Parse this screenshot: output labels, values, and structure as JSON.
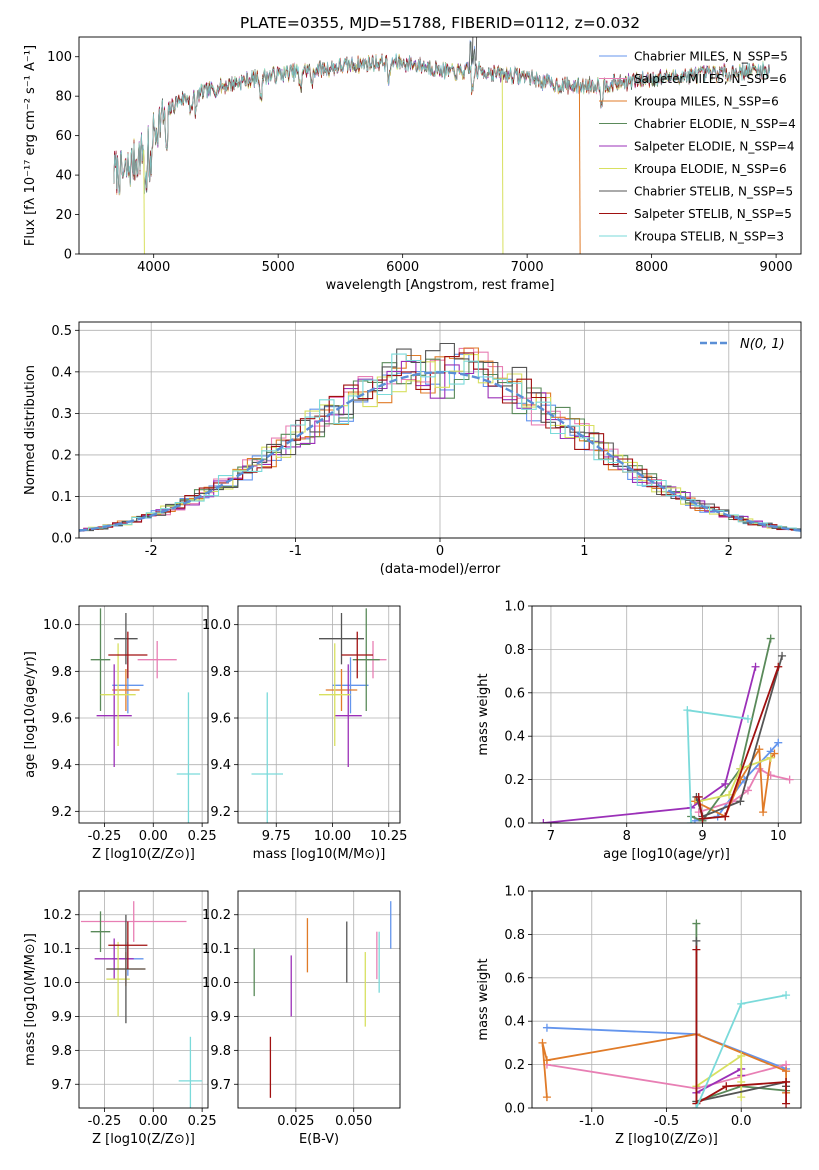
{
  "chart_data": [
    {
      "id": "spectrum",
      "type": "line",
      "title": "PLATE=0355, MJD=51788, FIBERID=0112, z=0.032",
      "xlabel": "wavelength [Angstrom, rest frame]",
      "ylabel": "Flux [fλ 10⁻¹⁷ erg cm⁻² s⁻¹ A⁻¹]",
      "xlim": [
        3400,
        9200
      ],
      "ylim": [
        0,
        110
      ],
      "xticks": [
        4000,
        5000,
        6000,
        7000,
        8000,
        9000
      ],
      "yticks": [
        0,
        20,
        40,
        60,
        80,
        100
      ],
      "legend_position": "top-right",
      "legend": [
        "Chabrier MILES, N_SSP=5",
        "Salpeter MILES, N_SSP=6",
        "Kroupa MILES, N_SSP=6",
        "Chabrier ELODIE, N_SSP=4",
        "Salpeter ELODIE, N_SSP=4",
        "Kroupa ELODIE, N_SSP=6",
        "Chabrier STELIB, N_SSP=5",
        "Salpeter STELIB, N_SSP=5",
        "Kroupa STELIB, N_SSP=3"
      ],
      "continuum": {
        "x": [
          3680,
          3760,
          3860,
          3950,
          4050,
          4200,
          4400,
          4600,
          4800,
          5000,
          5200,
          5400,
          5600,
          5800,
          6000,
          6200,
          6400,
          6600,
          6800,
          7000,
          7200,
          7400,
          7600,
          7800,
          8000,
          8200,
          8400,
          8600,
          8800,
          8950
        ],
        "y": [
          42,
          40,
          48,
          55,
          68,
          78,
          82,
          86,
          89,
          91,
          93,
          94,
          96,
          97,
          97,
          95,
          92,
          93,
          91,
          90,
          86,
          85,
          86,
          87,
          89,
          90,
          91,
          92,
          93,
          93
        ]
      },
      "drops": [
        {
          "model": "Kroupa ELODIE",
          "x": 3920
        },
        {
          "model": "Kroupa ELODIE",
          "x": 6800
        },
        {
          "model": "Kroupa MILES",
          "x": 7420
        }
      ]
    },
    {
      "id": "residuals",
      "type": "line",
      "xlabel": "(data-model)/error",
      "ylabel": "Normed distribution",
      "xlim": [
        -2.5,
        2.5
      ],
      "ylim": [
        0,
        0.52
      ],
      "xticks": [
        -2,
        -1,
        0,
        1,
        2
      ],
      "yticks": [
        0.0,
        0.1,
        0.2,
        0.3,
        0.4,
        0.5
      ],
      "grid": true,
      "series_label": "N(0, 1)",
      "legend_position": "top-right",
      "bin_width": 0.1
    },
    {
      "id": "age_vs_z",
      "type": "scatter",
      "xlabel": "Z [log10(Z/Z⊙)]",
      "ylabel": "age  [log10(age/yr)]",
      "xlim": [
        -0.38,
        0.28
      ],
      "ylim": [
        9.15,
        10.08
      ],
      "xticks": [
        -0.25,
        0.0,
        0.25
      ],
      "yticks": [
        9.2,
        9.4,
        9.6,
        9.8,
        10.0
      ],
      "points": [
        {
          "x": -0.13,
          "y": 9.74,
          "xerr": 0.08,
          "yerr": 0.12
        },
        {
          "x": 0.02,
          "y": 9.85,
          "xerr": 0.1,
          "yerr": 0.08
        },
        {
          "x": -0.14,
          "y": 9.72,
          "xerr": 0.07,
          "yerr": 0.09
        },
        {
          "x": -0.27,
          "y": 9.85,
          "xerr": 0.05,
          "yerr": 0.22
        },
        {
          "x": -0.2,
          "y": 9.61,
          "xerr": 0.09,
          "yerr": 0.22
        },
        {
          "x": -0.18,
          "y": 9.7,
          "xerr": 0.09,
          "yerr": 0.22
        },
        {
          "x": -0.14,
          "y": 9.94,
          "xerr": 0.06,
          "yerr": 0.11
        },
        {
          "x": -0.13,
          "y": 9.87,
          "xerr": 0.1,
          "yerr": 0.1
        },
        {
          "x": 0.18,
          "y": 9.36,
          "xerr": 0.06,
          "yerr": 0.35
        }
      ]
    },
    {
      "id": "age_vs_mass",
      "type": "scatter",
      "xlabel": "mass [log10(M/M⊙)]",
      "ylabel": "",
      "xlim": [
        9.58,
        10.3
      ],
      "ylim": [
        9.15,
        10.08
      ],
      "xticks": [
        9.75,
        10.0,
        10.25
      ],
      "yticks": [
        9.2,
        9.4,
        9.6,
        9.8,
        10.0
      ],
      "points": [
        {
          "x": 10.08,
          "y": 9.74,
          "xerr": 0.08,
          "yerr": 0.12
        },
        {
          "x": 10.18,
          "y": 9.85,
          "xerr": 0.06,
          "yerr": 0.08
        },
        {
          "x": 10.04,
          "y": 9.72,
          "xerr": 0.07,
          "yerr": 0.09
        },
        {
          "x": 10.15,
          "y": 9.85,
          "xerr": 0.06,
          "yerr": 0.22
        },
        {
          "x": 10.07,
          "y": 9.61,
          "xerr": 0.06,
          "yerr": 0.22
        },
        {
          "x": 10.01,
          "y": 9.7,
          "xerr": 0.07,
          "yerr": 0.22
        },
        {
          "x": 10.04,
          "y": 9.94,
          "xerr": 0.1,
          "yerr": 0.11
        },
        {
          "x": 10.11,
          "y": 9.87,
          "xerr": 0.07,
          "yerr": 0.1
        },
        {
          "x": 9.71,
          "y": 9.36,
          "xerr": 0.07,
          "yerr": 0.35
        }
      ]
    },
    {
      "id": "mass_weight_vs_age",
      "type": "line",
      "xlabel": "age  [log10(age/yr)]",
      "ylabel": "mass weight",
      "xlim": [
        6.75,
        10.3
      ],
      "ylim": [
        0,
        1.0
      ],
      "xticks": [
        7,
        8,
        9,
        10
      ],
      "yticks": [
        0.0,
        0.2,
        0.4,
        0.6,
        0.8,
        1.0
      ],
      "grid": true,
      "series": [
        {
          "x": [
            8.9,
            9.2,
            9.55,
            9.9,
            10.0
          ],
          "y": [
            0.01,
            0.03,
            0.2,
            0.33,
            0.37
          ]
        },
        {
          "x": [
            8.95,
            9.4,
            9.6,
            9.75,
            9.9,
            10.15
          ],
          "y": [
            0.05,
            0.1,
            0.15,
            0.25,
            0.22,
            0.2
          ]
        },
        {
          "x": [
            8.9,
            9.3,
            9.5,
            9.75,
            9.8,
            9.9,
            9.95
          ],
          "y": [
            0.1,
            0.03,
            0.2,
            0.34,
            0.05,
            0.3,
            0.32
          ]
        },
        {
          "x": [
            8.85,
            9.0,
            9.5,
            9.9
          ],
          "y": [
            0.03,
            0.01,
            0.25,
            0.85
          ]
        },
        {
          "x": [
            6.9,
            8.85,
            9.3,
            9.7
          ],
          "y": [
            0.0,
            0.07,
            0.18,
            0.72
          ]
        },
        {
          "x": [
            8.95,
            9.35,
            9.5,
            9.9
          ],
          "y": [
            0.1,
            0.13,
            0.25,
            0.3
          ]
        },
        {
          "x": [
            8.92,
            9.0,
            9.5,
            10.05
          ],
          "y": [
            0.12,
            0.03,
            0.1,
            0.77
          ]
        },
        {
          "x": [
            8.95,
            9.0,
            9.3,
            10.0
          ],
          "y": [
            0.12,
            0.02,
            0.03,
            0.72
          ]
        },
        {
          "x": [
            8.85,
            8.8,
            9.6
          ],
          "y": [
            0.0,
            0.52,
            0.48
          ]
        }
      ]
    },
    {
      "id": "mass_vs_z",
      "type": "scatter",
      "xlabel": "Z [log10(Z/Z⊙)]",
      "ylabel": "mass [log10(M/M⊙)]",
      "xlim": [
        -0.38,
        0.28
      ],
      "ylim": [
        9.63,
        10.27
      ],
      "xticks": [
        -0.25,
        0.0,
        0.25
      ],
      "yticks": [
        9.7,
        9.8,
        9.9,
        10.0,
        10.1,
        10.2
      ],
      "points": [
        {
          "x": -0.13,
          "y": 10.07,
          "xerr": 0.08,
          "yerr": 0.05
        },
        {
          "x": -0.1,
          "y": 10.18,
          "xerr": 0.27,
          "yerr": 0.06
        },
        {
          "x": -0.14,
          "y": 10.04,
          "xerr": 0.1,
          "yerr": 0.05
        },
        {
          "x": -0.27,
          "y": 10.15,
          "xerr": 0.05,
          "yerr": 0.06
        },
        {
          "x": -0.2,
          "y": 10.07,
          "xerr": 0.1,
          "yerr": 0.06
        },
        {
          "x": -0.18,
          "y": 10.01,
          "xerr": 0.06,
          "yerr": 0.11
        },
        {
          "x": -0.14,
          "y": 10.04,
          "xerr": 0.1,
          "yerr": 0.16
        },
        {
          "x": -0.13,
          "y": 10.11,
          "xerr": 0.1,
          "yerr": 0.07
        },
        {
          "x": 0.19,
          "y": 9.71,
          "xerr": 0.06,
          "yerr": 0.13
        }
      ]
    },
    {
      "id": "mass_vs_ebv",
      "type": "scatter",
      "xlabel": "E(B-V)",
      "ylabel": "",
      "xlim": [
        0.0,
        0.07
      ],
      "ylim": [
        9.63,
        10.27
      ],
      "xticks": [
        0.025,
        0.05
      ],
      "yticks": [
        9.7,
        9.8,
        9.9,
        10.0,
        10.1,
        10.2
      ],
      "points": [
        {
          "x": 0.066,
          "y": 10.17,
          "xerr": 0.0,
          "yerr": 0.07
        },
        {
          "x": 0.06,
          "y": 10.08,
          "xerr": 0.0,
          "yerr": 0.07
        },
        {
          "x": 0.03,
          "y": 10.11,
          "xerr": 0.0,
          "yerr": 0.08
        },
        {
          "x": 0.007,
          "y": 10.03,
          "xerr": 0.0,
          "yerr": 0.07
        },
        {
          "x": 0.023,
          "y": 9.99,
          "xerr": 0.0,
          "yerr": 0.09
        },
        {
          "x": 0.055,
          "y": 9.98,
          "xerr": 0.0,
          "yerr": 0.11
        },
        {
          "x": 0.047,
          "y": 10.09,
          "xerr": 0.0,
          "yerr": 0.09
        },
        {
          "x": 0.014,
          "y": 9.75,
          "xerr": 0.0,
          "yerr": 0.09
        },
        {
          "x": 0.061,
          "y": 10.06,
          "xerr": 0.0,
          "yerr": 0.09
        }
      ]
    },
    {
      "id": "mass_weight_vs_z",
      "type": "line",
      "xlabel": "Z [log10(Z/Z⊙)]",
      "ylabel": "mass weight",
      "xlim": [
        -1.4,
        0.4
      ],
      "ylim": [
        0,
        1.0
      ],
      "xticks": [
        -1.0,
        -0.5,
        0.0
      ],
      "yticks": [
        0.0,
        0.2,
        0.4,
        0.6,
        0.8,
        1.0
      ],
      "grid": true,
      "series": [
        {
          "x": [
            -1.3,
            -0.3,
            0.3
          ],
          "y": [
            0.37,
            0.34,
            0.18
          ]
        },
        {
          "x": [
            -1.3,
            -0.3,
            0.3,
            0.3
          ],
          "y": [
            0.2,
            0.09,
            0.2,
            0.17
          ]
        },
        {
          "x": [
            -1.3,
            -1.33,
            -1.3,
            -0.3,
            0.3,
            0.3
          ],
          "y": [
            0.05,
            0.3,
            0.22,
            0.34,
            0.17,
            0.07
          ]
        },
        {
          "x": [
            -0.3,
            -0.3,
            0.0,
            0.3
          ],
          "y": [
            0.85,
            0.03,
            0.1,
            0.08
          ]
        },
        {
          "x": [
            -0.3,
            0.0,
            0.0
          ],
          "y": [
            0.07,
            0.18,
            0.15
          ]
        },
        {
          "x": [
            -0.3,
            0.0,
            0.0,
            0.0
          ],
          "y": [
            0.1,
            0.24,
            0.12,
            0.05
          ]
        },
        {
          "x": [
            -0.3,
            -0.3,
            0.3,
            0.3
          ],
          "y": [
            0.77,
            0.03,
            0.12,
            0.1
          ]
        },
        {
          "x": [
            -0.3,
            -0.3,
            -0.1,
            0.3,
            0.3
          ],
          "y": [
            0.73,
            0.02,
            0.1,
            0.12,
            0.02
          ]
        },
        {
          "x": [
            -0.3,
            0.0,
            0.3
          ],
          "y": [
            0.0,
            0.48,
            0.52
          ]
        }
      ]
    }
  ],
  "style": {
    "series_colors": [
      "#6495ed",
      "#e87fb4",
      "#e07b28",
      "#5a8a5a",
      "#9b30b8",
      "#d8e060",
      "#555555",
      "#a01010",
      "#7adada"
    ],
    "gaussian_color": "#5b8fd6",
    "grid_color": "#b0b0b0"
  }
}
